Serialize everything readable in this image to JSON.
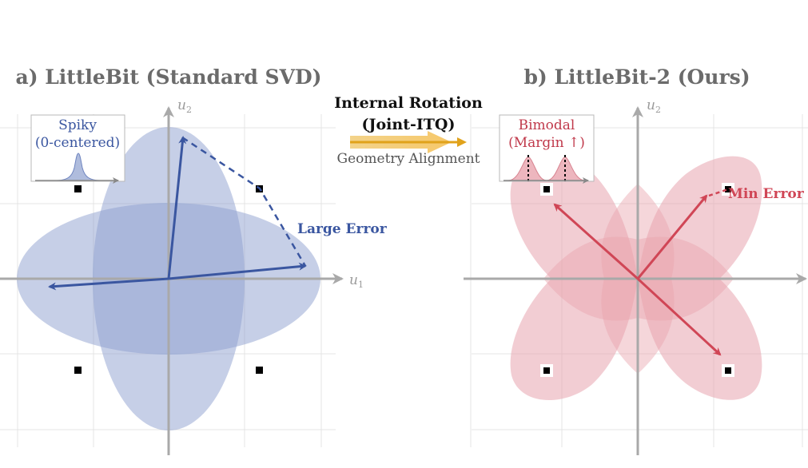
{
  "panel_a": {
    "title": "a) LittleBit (Standard SVD)",
    "axis_x": "u",
    "axis_x_sub": "1",
    "axis_y": "u",
    "axis_y_sub": "2",
    "inset_line1": "Spiky",
    "inset_line2": "(0-centered)",
    "error_label": "Large Error"
  },
  "middle": {
    "line1": "Internal Rotation",
    "line2": "(Joint-ITQ)",
    "line3": "Geometry Alignment"
  },
  "panel_b": {
    "title": "b) LittleBit-2 (Ours)",
    "axis_y": "u",
    "axis_y_sub": "2",
    "inset_line1": "Bimodal",
    "inset_line2": "(Margin ↑)",
    "error_label": "Min Error"
  },
  "colors": {
    "blue_fill": "#8d9fcf",
    "blue_stroke": "#3a56a0",
    "red_fill": "#e8a4ae",
    "red_stroke": "#d04656",
    "gold": "#e0a21b"
  }
}
